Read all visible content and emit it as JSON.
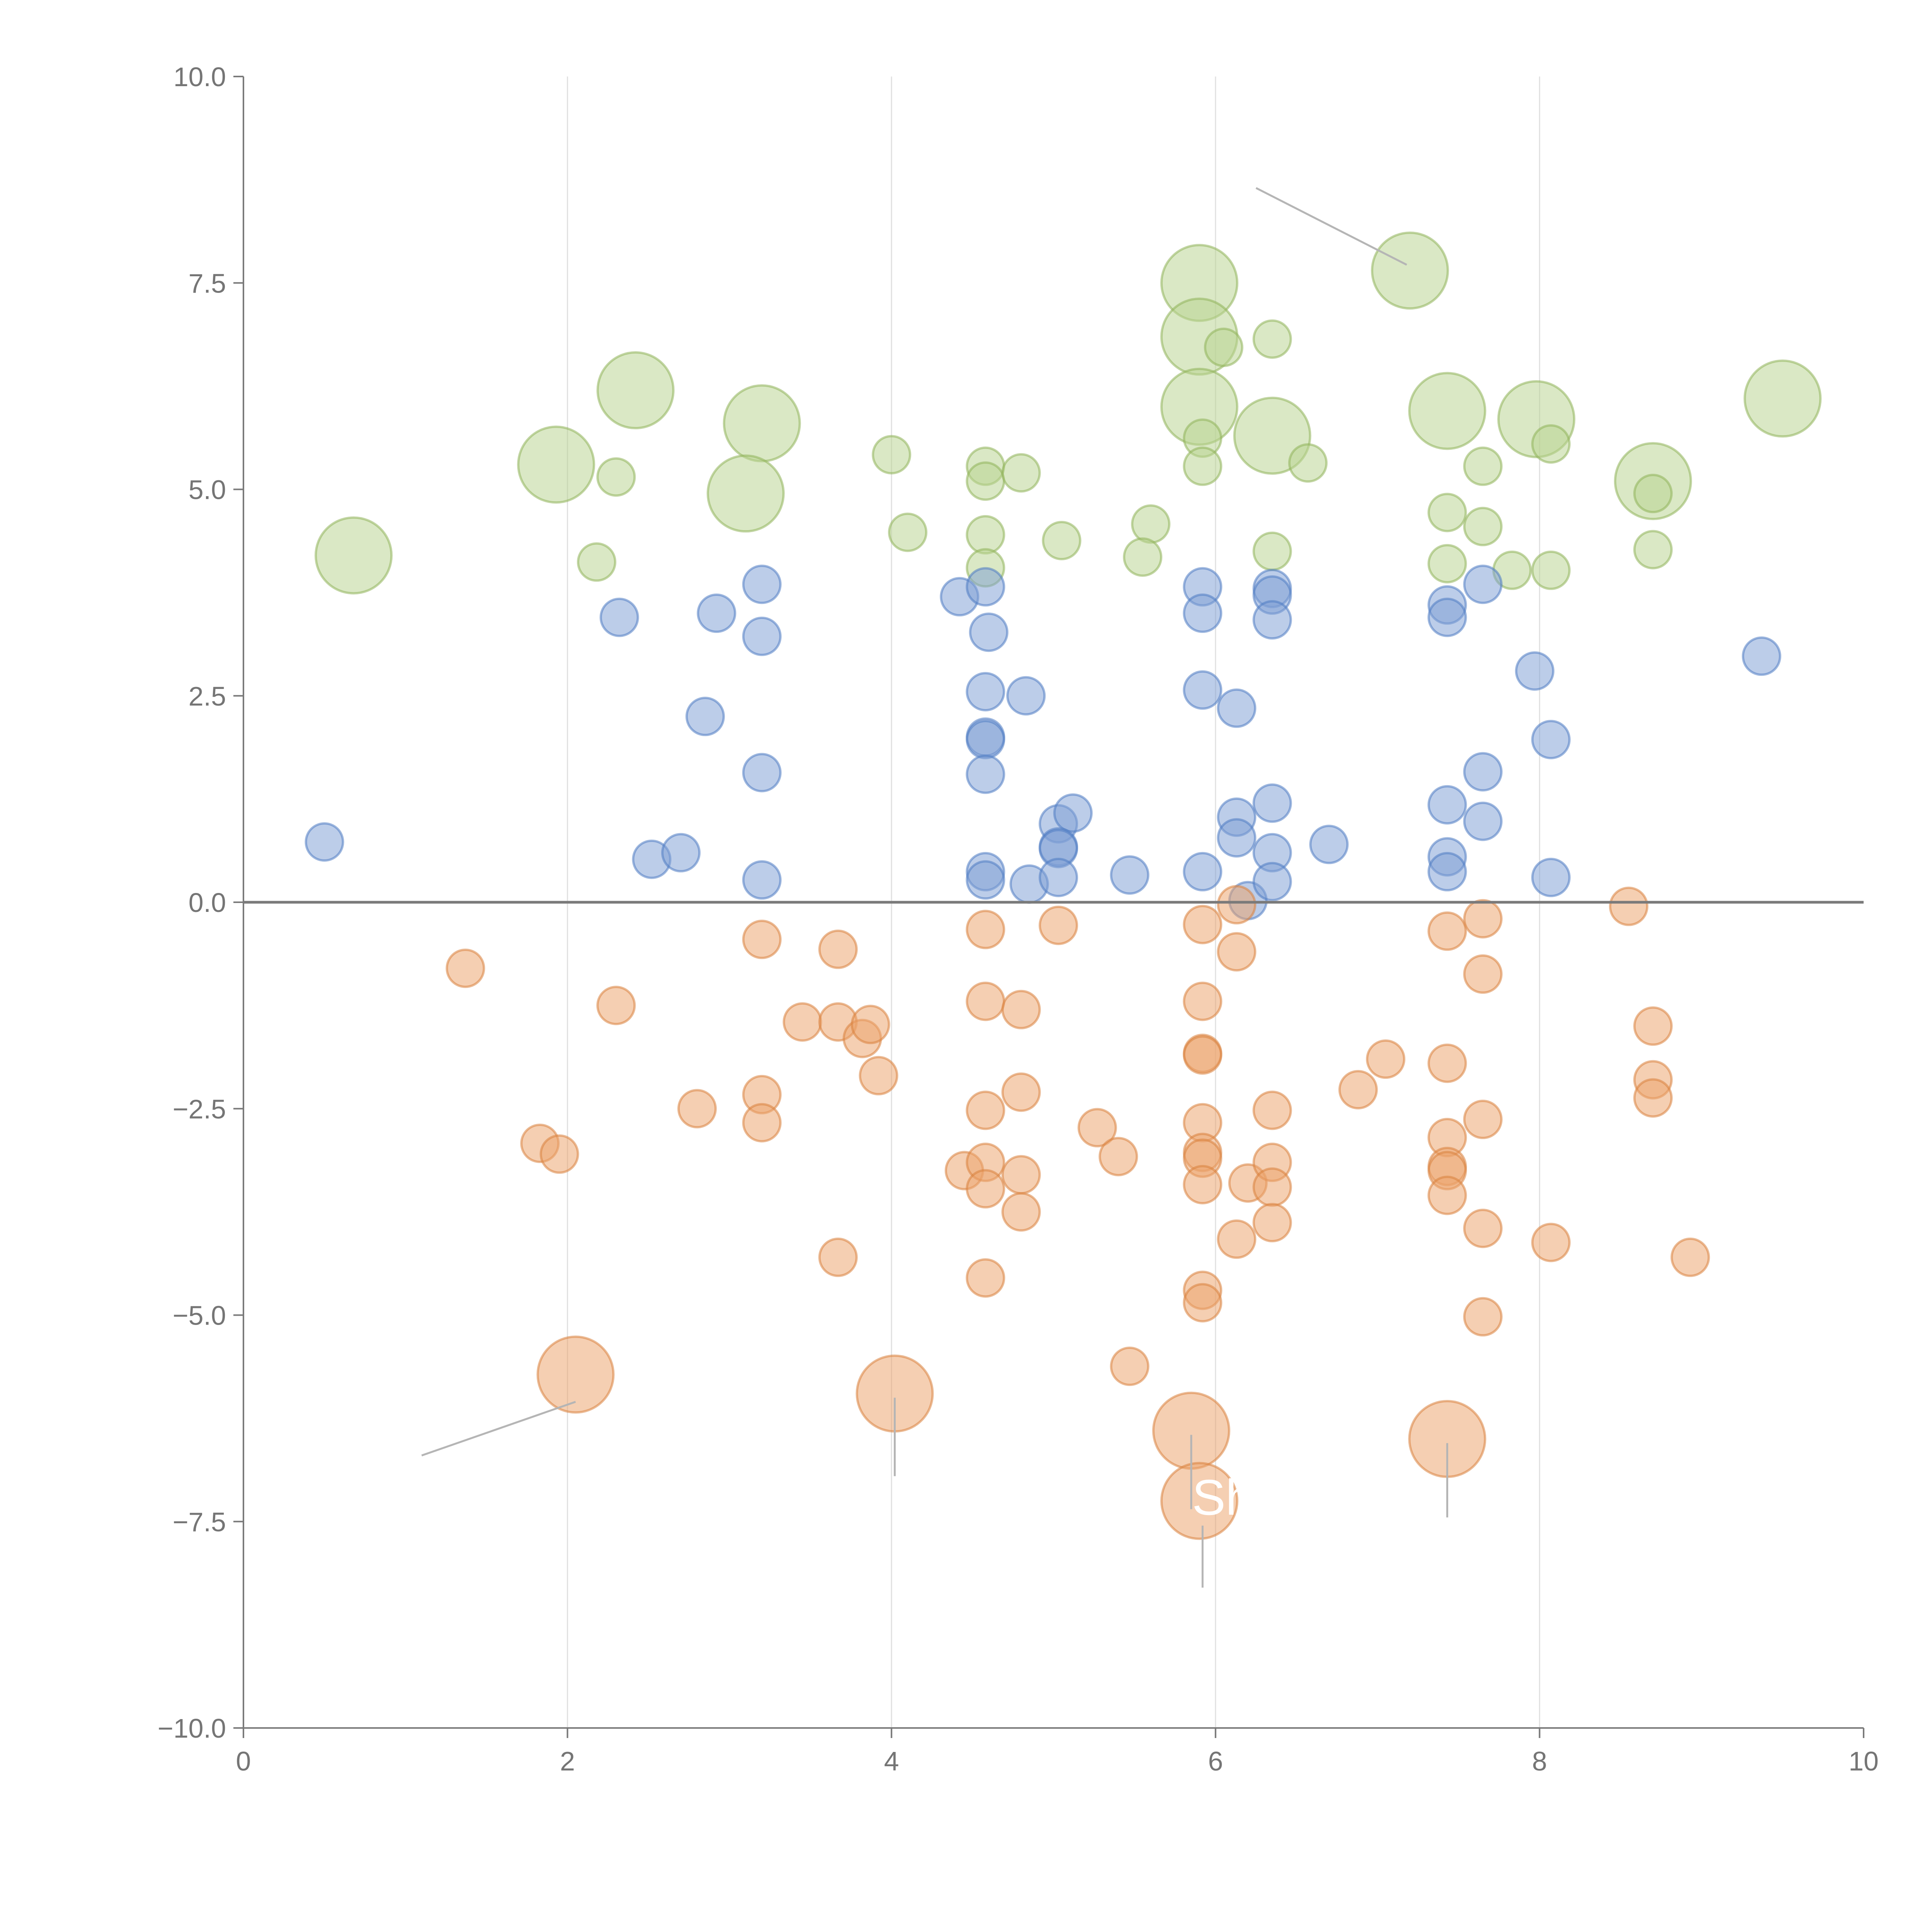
{
  "chart_data": {
    "type": "scatter",
    "title": "",
    "xlabel": "",
    "ylabel": "",
    "xlim": [
      0,
      10
    ],
    "ylim": [
      -10,
      10
    ],
    "grid": "vertical lines at x ticks",
    "x_ticks": [
      "0",
      "2",
      "4",
      "6",
      "8",
      "10"
    ],
    "y_ticks": [
      "10.0",
      "7.5",
      "5.0",
      "2.5",
      "0.0",
      "−2.5",
      "−5.0",
      "−7.5",
      "−10.0"
    ],
    "callout_text": "Sh",
    "colors": {
      "green_fill": "#b9d28f",
      "green_stroke": "#8fb35a",
      "blue_fill": "#7e9fd4",
      "blue_stroke": "#4f7cc2",
      "orange_fill": "#eba36b",
      "orange_stroke": "#d9823e",
      "axis": "#7a7a7a"
    },
    "series": [
      {
        "name": "green",
        "points": [
          {
            "x": 0.68,
            "y": 4.2,
            "r": 10
          },
          {
            "x": 1.93,
            "y": 5.3,
            "r": 10
          },
          {
            "x": 2.42,
            "y": 6.2,
            "r": 10
          },
          {
            "x": 3.2,
            "y": 5.8,
            "r": 10
          },
          {
            "x": 3.1,
            "y": 4.95,
            "r": 10
          },
          {
            "x": 5.9,
            "y": 7.5,
            "r": 10
          },
          {
            "x": 5.9,
            "y": 6.85,
            "r": 10
          },
          {
            "x": 5.9,
            "y": 6.0,
            "r": 10
          },
          {
            "x": 6.35,
            "y": 5.65,
            "r": 10
          },
          {
            "x": 7.2,
            "y": 7.65,
            "r": 10
          },
          {
            "x": 7.43,
            "y": 5.95,
            "r": 10
          },
          {
            "x": 7.98,
            "y": 5.85,
            "r": 10
          },
          {
            "x": 8.7,
            "y": 5.1,
            "r": 10
          },
          {
            "x": 9.5,
            "y": 6.1,
            "r": 10
          },
          {
            "x": 2.3,
            "y": 5.15,
            "r": 5
          },
          {
            "x": 2.18,
            "y": 4.12,
            "r": 5
          },
          {
            "x": 4.0,
            "y": 5.42,
            "r": 5
          },
          {
            "x": 4.1,
            "y": 4.48,
            "r": 5
          },
          {
            "x": 4.58,
            "y": 5.28,
            "r": 5
          },
          {
            "x": 4.58,
            "y": 5.1,
            "r": 5
          },
          {
            "x": 4.8,
            "y": 5.2,
            "r": 5
          },
          {
            "x": 4.58,
            "y": 4.45,
            "r": 5
          },
          {
            "x": 4.58,
            "y": 4.05,
            "r": 5
          },
          {
            "x": 5.05,
            "y": 4.38,
            "r": 5
          },
          {
            "x": 5.6,
            "y": 4.58,
            "r": 5
          },
          {
            "x": 5.55,
            "y": 4.18,
            "r": 5
          },
          {
            "x": 6.05,
            "y": 6.72,
            "r": 5
          },
          {
            "x": 6.35,
            "y": 6.82,
            "r": 5
          },
          {
            "x": 5.92,
            "y": 5.62,
            "r": 5
          },
          {
            "x": 5.92,
            "y": 5.28,
            "r": 5
          },
          {
            "x": 6.57,
            "y": 5.32,
            "r": 5
          },
          {
            "x": 6.35,
            "y": 4.25,
            "r": 5
          },
          {
            "x": 7.43,
            "y": 4.72,
            "r": 5
          },
          {
            "x": 7.43,
            "y": 4.1,
            "r": 5
          },
          {
            "x": 7.65,
            "y": 5.28,
            "r": 5
          },
          {
            "x": 7.65,
            "y": 4.55,
            "r": 5
          },
          {
            "x": 7.83,
            "y": 4.02,
            "r": 5
          },
          {
            "x": 8.07,
            "y": 5.55,
            "r": 5
          },
          {
            "x": 8.07,
            "y": 4.02,
            "r": 5
          },
          {
            "x": 8.7,
            "y": 4.95,
            "r": 5
          },
          {
            "x": 8.7,
            "y": 4.27,
            "r": 5
          }
        ]
      },
      {
        "name": "blue",
        "points": [
          {
            "x": 0.5,
            "y": 0.73,
            "r": 5
          },
          {
            "x": 2.32,
            "y": 3.45,
            "r": 5
          },
          {
            "x": 2.52,
            "y": 0.52,
            "r": 5
          },
          {
            "x": 2.7,
            "y": 0.6,
            "r": 5
          },
          {
            "x": 2.85,
            "y": 2.25,
            "r": 5
          },
          {
            "x": 2.92,
            "y": 3.5,
            "r": 5
          },
          {
            "x": 3.2,
            "y": 3.85,
            "r": 5
          },
          {
            "x": 3.2,
            "y": 3.22,
            "r": 5
          },
          {
            "x": 3.2,
            "y": 1.57,
            "r": 5
          },
          {
            "x": 3.2,
            "y": 0.27,
            "r": 5
          },
          {
            "x": 4.42,
            "y": 3.7,
            "r": 5
          },
          {
            "x": 4.58,
            "y": 3.82,
            "r": 5
          },
          {
            "x": 4.6,
            "y": 3.27,
            "r": 5
          },
          {
            "x": 4.58,
            "y": 2.55,
            "r": 5
          },
          {
            "x": 4.58,
            "y": 2.0,
            "r": 5
          },
          {
            "x": 4.58,
            "y": 1.97,
            "r": 5
          },
          {
            "x": 4.58,
            "y": 1.55,
            "r": 5
          },
          {
            "x": 4.58,
            "y": 0.37,
            "r": 5
          },
          {
            "x": 4.58,
            "y": 0.27,
            "r": 5
          },
          {
            "x": 4.83,
            "y": 2.5,
            "r": 5
          },
          {
            "x": 4.85,
            "y": 0.22,
            "r": 5
          },
          {
            "x": 5.03,
            "y": 0.95,
            "r": 5
          },
          {
            "x": 5.12,
            "y": 1.08,
            "r": 5
          },
          {
            "x": 5.03,
            "y": 0.67,
            "r": 5
          },
          {
            "x": 5.03,
            "y": 0.65,
            "r": 5
          },
          {
            "x": 5.03,
            "y": 0.3,
            "r": 5
          },
          {
            "x": 5.47,
            "y": 0.33,
            "r": 5
          },
          {
            "x": 5.92,
            "y": 3.82,
            "r": 5
          },
          {
            "x": 5.92,
            "y": 3.5,
            "r": 5
          },
          {
            "x": 5.92,
            "y": 2.57,
            "r": 5
          },
          {
            "x": 5.92,
            "y": 0.37,
            "r": 5
          },
          {
            "x": 6.13,
            "y": 2.35,
            "r": 5
          },
          {
            "x": 6.13,
            "y": 1.03,
            "r": 5
          },
          {
            "x": 6.13,
            "y": 0.78,
            "r": 5
          },
          {
            "x": 6.2,
            "y": 0.02,
            "r": 5
          },
          {
            "x": 6.35,
            "y": 3.8,
            "r": 5
          },
          {
            "x": 6.35,
            "y": 3.72,
            "r": 5
          },
          {
            "x": 6.35,
            "y": 3.42,
            "r": 5
          },
          {
            "x": 6.35,
            "y": 1.2,
            "r": 5
          },
          {
            "x": 6.35,
            "y": 0.6,
            "r": 5
          },
          {
            "x": 6.35,
            "y": 0.25,
            "r": 5
          },
          {
            "x": 6.7,
            "y": 0.7,
            "r": 5
          },
          {
            "x": 7.43,
            "y": 3.6,
            "r": 5
          },
          {
            "x": 7.43,
            "y": 3.45,
            "r": 5
          },
          {
            "x": 7.43,
            "y": 1.18,
            "r": 5
          },
          {
            "x": 7.43,
            "y": 0.55,
            "r": 5
          },
          {
            "x": 7.43,
            "y": 0.37,
            "r": 5
          },
          {
            "x": 7.65,
            "y": 3.85,
            "r": 5
          },
          {
            "x": 7.65,
            "y": 1.58,
            "r": 5
          },
          {
            "x": 7.65,
            "y": 0.98,
            "r": 5
          },
          {
            "x": 7.97,
            "y": 2.8,
            "r": 5
          },
          {
            "x": 8.07,
            "y": 1.97,
            "r": 5
          },
          {
            "x": 8.07,
            "y": 0.3,
            "r": 5
          },
          {
            "x": 9.37,
            "y": 2.98,
            "r": 5
          }
        ]
      },
      {
        "name": "orange",
        "points": [
          {
            "x": 1.37,
            "y": -0.8,
            "r": 5
          },
          {
            "x": 1.83,
            "y": -2.92,
            "r": 5
          },
          {
            "x": 1.95,
            "y": -3.05,
            "r": 5
          },
          {
            "x": 2.3,
            "y": -1.25,
            "r": 5
          },
          {
            "x": 2.8,
            "y": -2.5,
            "r": 5
          },
          {
            "x": 3.2,
            "y": -0.45,
            "r": 5
          },
          {
            "x": 3.2,
            "y": -2.33,
            "r": 5
          },
          {
            "x": 3.2,
            "y": -2.67,
            "r": 5
          },
          {
            "x": 3.45,
            "y": -1.45,
            "r": 5
          },
          {
            "x": 3.67,
            "y": -0.57,
            "r": 5
          },
          {
            "x": 3.67,
            "y": -1.45,
            "r": 5
          },
          {
            "x": 3.82,
            "y": -1.65,
            "r": 5
          },
          {
            "x": 3.87,
            "y": -1.48,
            "r": 5
          },
          {
            "x": 3.92,
            "y": -2.1,
            "r": 5
          },
          {
            "x": 3.67,
            "y": -4.3,
            "r": 5
          },
          {
            "x": 4.45,
            "y": -3.25,
            "r": 5
          },
          {
            "x": 4.58,
            "y": -0.33,
            "r": 5
          },
          {
            "x": 4.58,
            "y": -1.2,
            "r": 5
          },
          {
            "x": 4.58,
            "y": -2.52,
            "r": 5
          },
          {
            "x": 4.58,
            "y": -3.15,
            "r": 5
          },
          {
            "x": 4.58,
            "y": -3.47,
            "r": 5
          },
          {
            "x": 4.58,
            "y": -4.55,
            "r": 5
          },
          {
            "x": 4.8,
            "y": -1.3,
            "r": 5
          },
          {
            "x": 4.8,
            "y": -2.3,
            "r": 5
          },
          {
            "x": 4.8,
            "y": -3.3,
            "r": 5
          },
          {
            "x": 4.8,
            "y": -3.75,
            "r": 5
          },
          {
            "x": 5.03,
            "y": -0.28,
            "r": 5
          },
          {
            "x": 5.27,
            "y": -2.73,
            "r": 5
          },
          {
            "x": 5.4,
            "y": -3.08,
            "r": 5
          },
          {
            "x": 5.47,
            "y": -5.62,
            "r": 5
          },
          {
            "x": 5.92,
            "y": -0.27,
            "r": 5
          },
          {
            "x": 5.92,
            "y": -1.2,
            "r": 5
          },
          {
            "x": 5.92,
            "y": -1.83,
            "r": 5
          },
          {
            "x": 5.92,
            "y": -1.85,
            "r": 5
          },
          {
            "x": 5.92,
            "y": -2.67,
            "r": 5
          },
          {
            "x": 5.92,
            "y": -3.03,
            "r": 5
          },
          {
            "x": 5.92,
            "y": -3.1,
            "r": 5
          },
          {
            "x": 5.92,
            "y": -3.42,
            "r": 5
          },
          {
            "x": 5.92,
            "y": -4.7,
            "r": 5
          },
          {
            "x": 5.92,
            "y": -4.85,
            "r": 5
          },
          {
            "x": 6.13,
            "y": -0.03,
            "r": 5
          },
          {
            "x": 6.13,
            "y": -0.6,
            "r": 5
          },
          {
            "x": 6.2,
            "y": -3.4,
            "r": 5
          },
          {
            "x": 6.13,
            "y": -4.08,
            "r": 5
          },
          {
            "x": 6.35,
            "y": -2.52,
            "r": 5
          },
          {
            "x": 6.35,
            "y": -3.15,
            "r": 5
          },
          {
            "x": 6.35,
            "y": -3.45,
            "r": 5
          },
          {
            "x": 6.35,
            "y": -3.88,
            "r": 5
          },
          {
            "x": 6.88,
            "y": -2.27,
            "r": 5
          },
          {
            "x": 7.05,
            "y": -1.9,
            "r": 5
          },
          {
            "x": 7.43,
            "y": -0.35,
            "r": 5
          },
          {
            "x": 7.43,
            "y": -1.95,
            "r": 5
          },
          {
            "x": 7.43,
            "y": -2.85,
            "r": 5
          },
          {
            "x": 7.43,
            "y": -3.2,
            "r": 5
          },
          {
            "x": 7.43,
            "y": -3.25,
            "r": 5
          },
          {
            "x": 7.43,
            "y": -3.55,
            "r": 5
          },
          {
            "x": 7.65,
            "y": -0.2,
            "r": 5
          },
          {
            "x": 7.65,
            "y": -0.87,
            "r": 5
          },
          {
            "x": 7.65,
            "y": -2.63,
            "r": 5
          },
          {
            "x": 7.65,
            "y": -3.95,
            "r": 5
          },
          {
            "x": 7.65,
            "y": -5.02,
            "r": 5
          },
          {
            "x": 8.07,
            "y": -4.12,
            "r": 5
          },
          {
            "x": 8.55,
            "y": -0.05,
            "r": 5
          },
          {
            "x": 8.7,
            "y": -1.5,
            "r": 5
          },
          {
            "x": 8.7,
            "y": -2.15,
            "r": 5
          },
          {
            "x": 8.7,
            "y": -2.37,
            "r": 5
          },
          {
            "x": 8.93,
            "y": -4.3,
            "r": 5
          },
          {
            "x": 2.05,
            "y": -5.72,
            "r": 10
          },
          {
            "x": 4.02,
            "y": -5.95,
            "r": 10
          },
          {
            "x": 5.85,
            "y": -6.4,
            "r": 10
          },
          {
            "x": 5.9,
            "y": -7.25,
            "r": 10
          },
          {
            "x": 7.43,
            "y": -6.5,
            "r": 10
          }
        ]
      }
    ]
  }
}
